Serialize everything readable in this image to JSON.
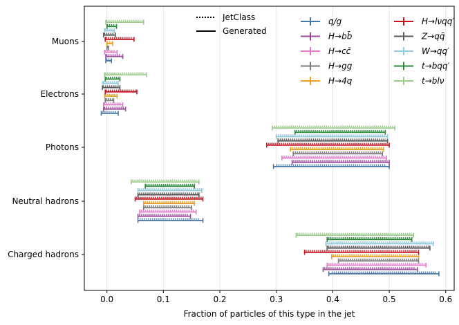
{
  "chart_data": {
    "type": "range",
    "xlabel": "Fraction of particles of this type in the jet",
    "xlim": [
      -0.04,
      0.615
    ],
    "xticks": [
      0.0,
      0.1,
      0.2,
      0.3,
      0.4,
      0.5,
      0.6
    ],
    "xtick_labels": [
      "0.0",
      "0.1",
      "0.2",
      "0.3",
      "0.4",
      "0.5",
      "0.6"
    ],
    "categories": [
      "Muons",
      "Electrons",
      "Photons",
      "Neutral hadrons",
      "Charged hadrons"
    ],
    "style_legend": [
      {
        "label": "JetClass",
        "style": "dotted"
      },
      {
        "label": "Generated",
        "style": "solid"
      }
    ],
    "series": [
      {
        "name": "q/g",
        "color": "#4878a8",
        "generated": [
          [
            -0.002,
            0.008
          ],
          [
            -0.01,
            0.02
          ],
          [
            0.295,
            0.5
          ],
          [
            0.055,
            0.17
          ],
          [
            0.393,
            0.588
          ]
        ],
        "jetclass": [
          [
            -0.001,
            0.007
          ],
          [
            -0.008,
            0.018
          ],
          [
            0.3,
            0.495
          ],
          [
            0.058,
            0.165
          ],
          [
            0.398,
            0.583
          ]
        ]
      },
      {
        "name": "H→bb̄",
        "color": "#9c4a9c",
        "generated": [
          [
            -0.002,
            0.028
          ],
          [
            -0.006,
            0.033
          ],
          [
            0.328,
            0.5
          ],
          [
            0.055,
            0.148
          ],
          [
            0.383,
            0.55
          ]
        ],
        "jetclass": [
          [
            -0.001,
            0.025
          ],
          [
            -0.005,
            0.03
          ],
          [
            0.33,
            0.497
          ],
          [
            0.057,
            0.145
          ],
          [
            0.385,
            0.547
          ]
        ]
      },
      {
        "name": "H→cc̄",
        "color": "#e07ac8",
        "generated": [
          [
            -0.004,
            0.018
          ],
          [
            -0.006,
            0.028
          ],
          [
            0.31,
            0.495
          ],
          [
            0.058,
            0.158
          ],
          [
            0.39,
            0.565
          ]
        ],
        "jetclass": [
          [
            -0.003,
            0.015
          ],
          [
            -0.005,
            0.025
          ],
          [
            0.313,
            0.492
          ],
          [
            0.06,
            0.155
          ],
          [
            0.392,
            0.562
          ]
        ]
      },
      {
        "name": "H→gg",
        "color": "#7a7a7a",
        "generated": [
          [
            0.0,
            0.003
          ],
          [
            -0.003,
            0.012
          ],
          [
            0.33,
            0.488
          ],
          [
            0.065,
            0.15
          ],
          [
            0.41,
            0.552
          ]
        ],
        "jetclass": [
          [
            0.0,
            0.002
          ],
          [
            -0.002,
            0.01
          ],
          [
            0.333,
            0.485
          ],
          [
            0.067,
            0.148
          ],
          [
            0.412,
            0.55
          ]
        ]
      },
      {
        "name": "H→4q",
        "color": "#e8a020",
        "generated": [
          [
            0.0,
            0.01
          ],
          [
            -0.004,
            0.018
          ],
          [
            0.325,
            0.49
          ],
          [
            0.065,
            0.155
          ],
          [
            0.398,
            0.552
          ]
        ],
        "jetclass": [
          [
            0.0,
            0.008
          ],
          [
            -0.003,
            0.016
          ],
          [
            0.327,
            0.487
          ],
          [
            0.067,
            0.153
          ],
          [
            0.4,
            0.55
          ]
        ]
      },
      {
        "name": "H→lνqq′",
        "color": "#cc1020",
        "generated": [
          [
            -0.003,
            0.048
          ],
          [
            -0.003,
            0.053
          ],
          [
            0.283,
            0.5
          ],
          [
            0.05,
            0.17
          ],
          [
            0.35,
            0.552
          ]
        ],
        "jetclass": [
          [
            -0.002,
            0.046
          ],
          [
            -0.002,
            0.051
          ],
          [
            0.286,
            0.497
          ],
          [
            0.052,
            0.168
          ],
          [
            0.352,
            0.55
          ]
        ]
      },
      {
        "name": "Z→qq̄",
        "color": "#585858",
        "generated": [
          [
            -0.006,
            0.015
          ],
          [
            -0.008,
            0.023
          ],
          [
            0.303,
            0.497
          ],
          [
            0.055,
            0.163
          ],
          [
            0.39,
            0.572
          ]
        ],
        "jetclass": [
          [
            -0.005,
            0.013
          ],
          [
            -0.007,
            0.021
          ],
          [
            0.306,
            0.494
          ],
          [
            0.057,
            0.161
          ],
          [
            0.392,
            0.57
          ]
        ]
      },
      {
        "name": "W→qq′",
        "color": "#90c8e0",
        "generated": [
          [
            -0.004,
            0.013
          ],
          [
            -0.007,
            0.02
          ],
          [
            0.3,
            0.497
          ],
          [
            0.055,
            0.168
          ],
          [
            0.388,
            0.578
          ]
        ],
        "jetclass": [
          [
            -0.003,
            0.011
          ],
          [
            -0.006,
            0.018
          ],
          [
            0.303,
            0.494
          ],
          [
            0.057,
            0.166
          ],
          [
            0.39,
            0.576
          ]
        ]
      },
      {
        "name": "t→bqq′",
        "color": "#2a8a3a",
        "generated": [
          [
            0.0,
            0.017
          ],
          [
            -0.003,
            0.023
          ],
          [
            0.333,
            0.493
          ],
          [
            0.068,
            0.155
          ],
          [
            0.39,
            0.54
          ]
        ],
        "jetclass": [
          [
            0.0,
            0.015
          ],
          [
            -0.002,
            0.021
          ],
          [
            0.335,
            0.49
          ],
          [
            0.07,
            0.153
          ],
          [
            0.392,
            0.537
          ]
        ]
      },
      {
        "name": "t→blν",
        "color": "#98cc88",
        "generated": [
          [
            -0.002,
            0.065
          ],
          [
            -0.004,
            0.07
          ],
          [
            0.293,
            0.51
          ],
          [
            0.043,
            0.163
          ],
          [
            0.335,
            0.543
          ]
        ],
        "jetclass": [
          [
            -0.001,
            0.063
          ],
          [
            -0.003,
            0.068
          ],
          [
            0.296,
            0.507
          ],
          [
            0.045,
            0.16
          ],
          [
            0.337,
            0.54
          ]
        ]
      }
    ]
  }
}
